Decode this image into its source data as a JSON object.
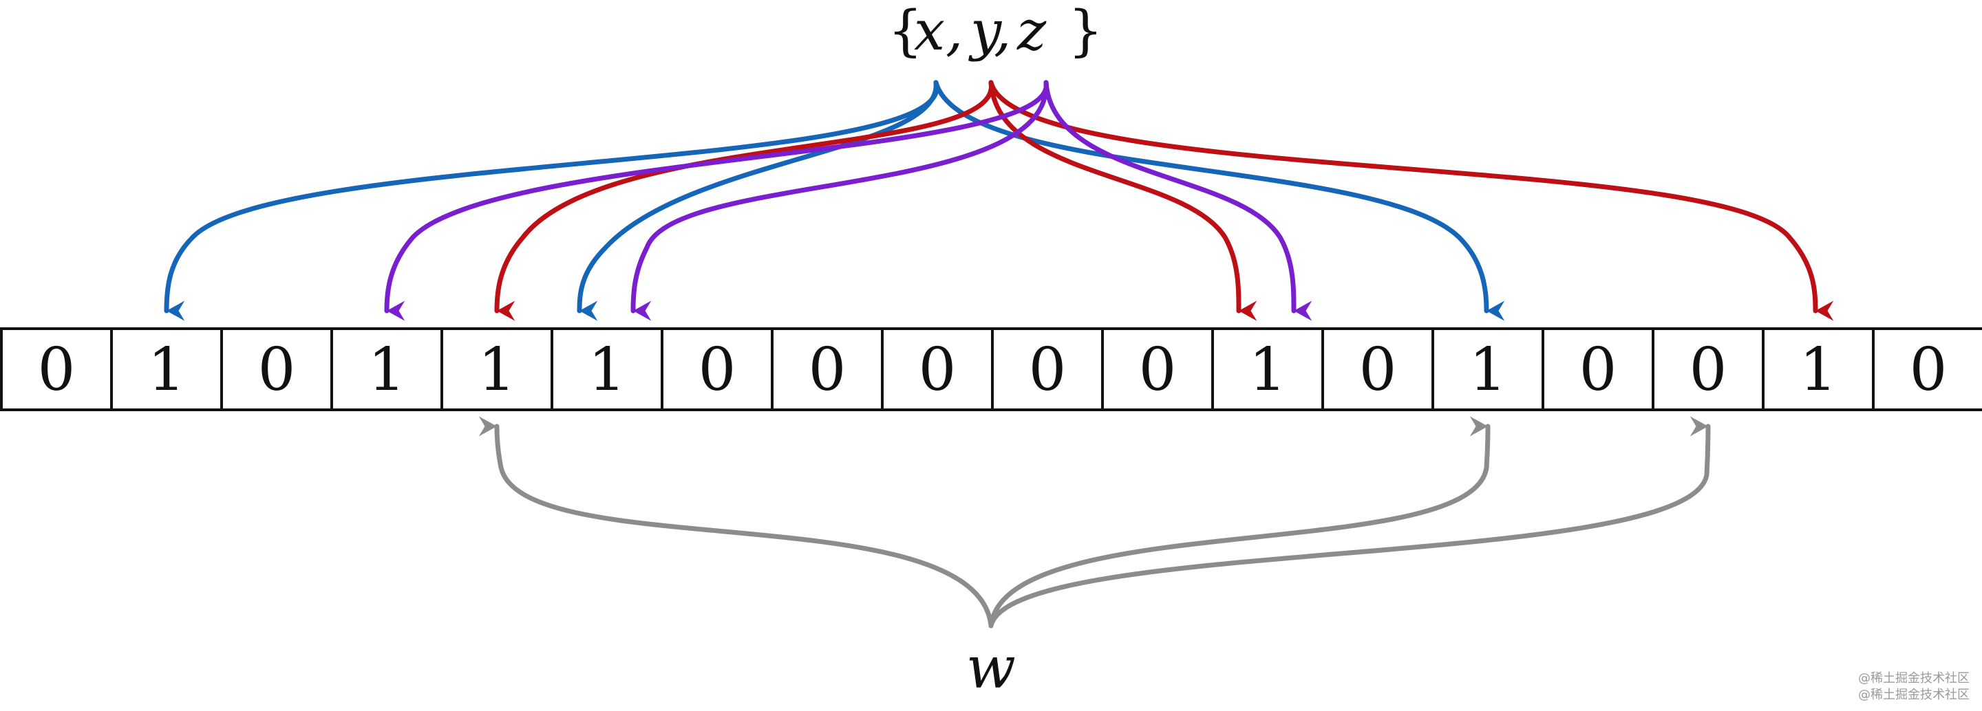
{
  "set": {
    "open": "{",
    "x": "x",
    "comma1": ",",
    "y": "y",
    "comma2": ",",
    "z": "z",
    "close": "}"
  },
  "query": {
    "label": "w"
  },
  "bits": [
    "0",
    "1",
    "0",
    "1",
    "1",
    "1",
    "0",
    "0",
    "0",
    "0",
    "0",
    "1",
    "0",
    "1",
    "0",
    "0",
    "1",
    "0"
  ],
  "mappings": {
    "x": {
      "color": "#1565b8",
      "targets": [
        1,
        5,
        13
      ]
    },
    "y": {
      "color": "#bd0f14",
      "targets": [
        4,
        11,
        16
      ]
    },
    "z": {
      "color": "#7a1fcf",
      "targets": [
        3,
        5,
        11
      ]
    },
    "w": {
      "color": "#8c8c8c",
      "targets": [
        4,
        13,
        15
      ]
    }
  },
  "watermark": {
    "line1": "@稀土掘金技术社区",
    "line2": "@稀土掘金技术社区"
  }
}
